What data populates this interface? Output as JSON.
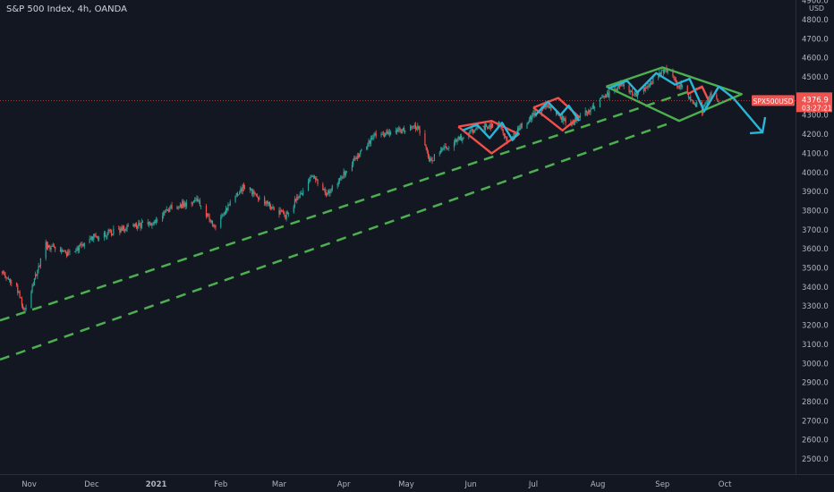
{
  "header": {
    "symbol_name": "S&P 500 Index",
    "interval": "4h",
    "broker": "OANDA"
  },
  "price_badge": {
    "symbol": "SPX500USD",
    "price": "4376.9",
    "countdown": "03:27:21",
    "color": "#ef5350"
  },
  "colors": {
    "background": "#131722",
    "up": "#26a69a",
    "down": "#ef5350",
    "channel": "#4caf50",
    "pattern_red": "#f0504a",
    "pattern_cyan": "#29b6d8",
    "pattern_green": "#4caf50",
    "axis_text": "#b2b5be"
  },
  "chart_data": {
    "type": "candlestick",
    "title": "S&P 500 Index, 4h, OANDA",
    "currency": "USD",
    "x_tick_labels": [
      "Nov",
      "Dec",
      "2021",
      "Feb",
      "Mar",
      "Apr",
      "May",
      "Jun",
      "Jul",
      "Aug",
      "Sep",
      "Oct"
    ],
    "y_tick_labels": [
      "4900.0",
      "4800.0",
      "4700.0",
      "4600.0",
      "4500.0",
      "4400.0",
      "4300.0",
      "4200.0",
      "4100.0",
      "4000.0",
      "3900.0",
      "3800.0",
      "3700.0",
      "3600.0",
      "3500.0",
      "3400.0",
      "3300.0",
      "3200.0",
      "3100.0",
      "3000.0",
      "2900.0",
      "2800.0",
      "2700.0",
      "2600.0",
      "2500.0"
    ],
    "ylim": [
      2420,
      4930
    ],
    "xlim": [
      "2020-10-18",
      "2021-10-31"
    ],
    "grid": false,
    "price_path": [
      [
        "2020-10-18",
        3480
      ],
      [
        "2020-10-26",
        3400
      ],
      [
        "2020-10-30",
        3270
      ],
      [
        "2020-11-04",
        3450
      ],
      [
        "2020-11-09",
        3620
      ],
      [
        "2020-11-20",
        3570
      ],
      [
        "2020-12-01",
        3660
      ],
      [
        "2020-12-15",
        3700
      ],
      [
        "2020-12-31",
        3740
      ],
      [
        "2021-01-08",
        3820
      ],
      [
        "2021-01-21",
        3850
      ],
      [
        "2021-01-29",
        3720
      ],
      [
        "2021-02-12",
        3930
      ],
      [
        "2021-03-04",
        3770
      ],
      [
        "2021-03-17",
        3980
      ],
      [
        "2021-03-24",
        3890
      ],
      [
        "2021-04-16",
        4190
      ],
      [
        "2021-05-07",
        4240
      ],
      [
        "2021-05-12",
        4060
      ],
      [
        "2021-05-31",
        4210
      ],
      [
        "2021-06-14",
        4260
      ],
      [
        "2021-06-18",
        4170
      ],
      [
        "2021-07-07",
        4360
      ],
      [
        "2021-07-19",
        4250
      ],
      [
        "2021-08-13",
        4470
      ],
      [
        "2021-08-19",
        4400
      ],
      [
        "2021-09-02",
        4540
      ],
      [
        "2021-09-20",
        4320
      ],
      [
        "2021-09-24",
        4420
      ],
      [
        "2021-09-28",
        4376.9
      ]
    ],
    "last_price": 4376.9,
    "drawings": {
      "channel_lines": [
        {
          "color": "green",
          "style": "dashed",
          "from": [
            "2020-10-18",
            3225
          ],
          "to": [
            "2021-09-21",
            4450
          ]
        },
        {
          "color": "green",
          "style": "dashed",
          "from": [
            "2020-10-18",
            3020
          ],
          "to": [
            "2021-09-05",
            4260
          ]
        }
      ],
      "red_patterns": [
        [
          [
            "2021-05-26",
            4240
          ],
          [
            "2021-06-11",
            4270
          ],
          [
            "2021-06-24",
            4200
          ],
          [
            "2021-06-11",
            4100
          ],
          [
            "2021-05-26",
            4240
          ]
        ],
        [
          [
            "2021-07-01",
            4340
          ],
          [
            "2021-07-13",
            4390
          ],
          [
            "2021-07-23",
            4290
          ],
          [
            "2021-07-15",
            4220
          ],
          [
            "2021-07-01",
            4340
          ]
        ],
        [
          [
            "2021-09-13",
            4410
          ],
          [
            "2021-09-20",
            4450
          ],
          [
            "2021-09-23",
            4380
          ]
        ]
      ],
      "cyan_patterns": [
        [
          [
            "2021-05-28",
            4220
          ],
          [
            "2021-06-04",
            4250
          ],
          [
            "2021-06-10",
            4180
          ],
          [
            "2021-06-16",
            4260
          ],
          [
            "2021-06-21",
            4170
          ],
          [
            "2021-06-24",
            4210
          ]
        ],
        [
          [
            "2021-07-02",
            4300
          ],
          [
            "2021-07-08",
            4370
          ],
          [
            "2021-07-14",
            4300
          ],
          [
            "2021-07-18",
            4350
          ],
          [
            "2021-07-23",
            4270
          ]
        ],
        [
          [
            "2021-08-06",
            4440
          ],
          [
            "2021-08-15",
            4480
          ],
          [
            "2021-08-20",
            4420
          ],
          [
            "2021-08-29",
            4520
          ],
          [
            "2021-09-07",
            4460
          ],
          [
            "2021-09-14",
            4490
          ],
          [
            "2021-09-21",
            4320
          ],
          [
            "2021-09-28",
            4450
          ],
          [
            "2021-10-05",
            4390
          ],
          [
            "2021-10-19",
            4210
          ]
        ]
      ],
      "green_patterns": [
        [
          [
            "2021-08-05",
            4450
          ],
          [
            "2021-09-01",
            4550
          ],
          [
            "2021-10-09",
            4410
          ],
          [
            "2021-09-09",
            4270
          ],
          [
            "2021-08-05",
            4450
          ]
        ]
      ]
    }
  }
}
